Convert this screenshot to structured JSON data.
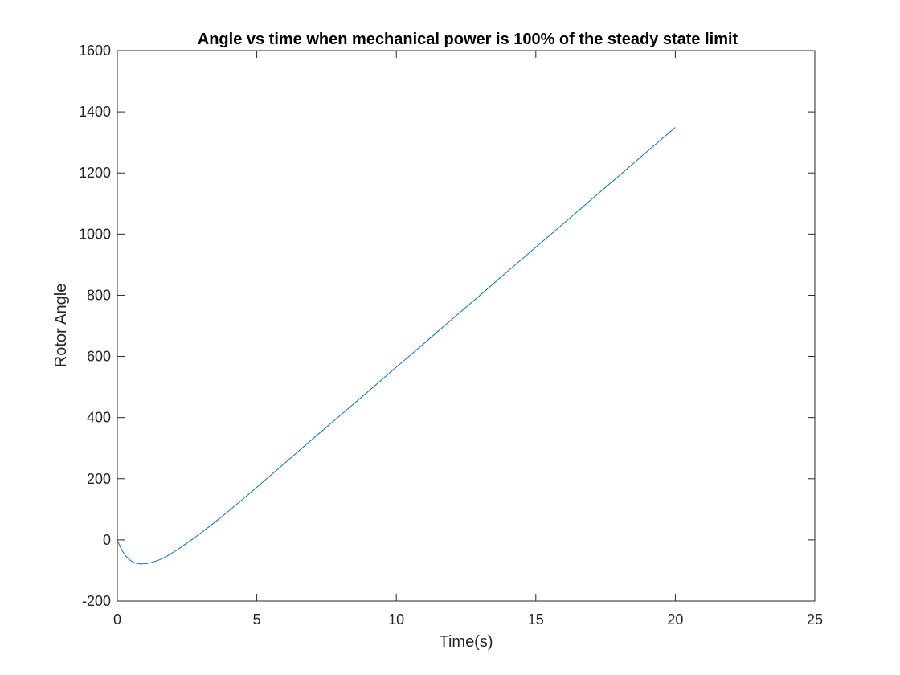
{
  "chart_data": {
    "type": "line",
    "title": "Angle vs time when mechanical power is 100% of the steady state limit",
    "xlabel": "Time(s)",
    "ylabel": "Rotor Angle",
    "xlim": [
      0,
      25
    ],
    "ylim": [
      -200,
      1600
    ],
    "xticks": [
      0,
      5,
      10,
      15,
      20,
      25
    ],
    "yticks": [
      -200,
      0,
      200,
      400,
      600,
      800,
      1000,
      1200,
      1400,
      1600
    ],
    "xtick_labels": [
      "0",
      "5",
      "10",
      "15",
      "20",
      "25"
    ],
    "ytick_labels": [
      "-200",
      "0",
      "200",
      "400",
      "600",
      "800",
      "1000",
      "1200",
      "1400",
      "1600"
    ],
    "grid": false,
    "legend": "none",
    "series": [
      {
        "color": "#0072bd",
        "x": [
          0,
          0.1,
          0.2,
          0.3,
          0.4,
          0.5,
          0.6,
          0.7,
          0.8,
          0.9,
          1.0,
          1.1,
          1.2,
          1.3,
          1.4,
          1.5,
          1.6,
          1.8,
          2.0,
          2.25,
          2.5,
          2.75,
          3.0,
          3.5,
          4.0,
          4.5,
          5.0,
          6.0,
          7.0,
          8.0,
          9.0,
          10.0,
          11.0,
          12.0,
          13.0,
          14.0,
          15.0,
          16.0,
          17.0,
          18.0,
          19.0,
          20.0
        ],
        "y": [
          0,
          -22,
          -39,
          -52,
          -62,
          -69,
          -74,
          -77,
          -78.5,
          -78.5,
          -78,
          -76.5,
          -74.5,
          -72,
          -69,
          -65.5,
          -61.5,
          -52,
          -41,
          -26,
          -10,
          6,
          23,
          58,
          95,
          133,
          172,
          251,
          330,
          408,
          486,
          565,
          643,
          722,
          800,
          879,
          957,
          1035,
          1114,
          1192,
          1271,
          1349
        ]
      }
    ]
  }
}
